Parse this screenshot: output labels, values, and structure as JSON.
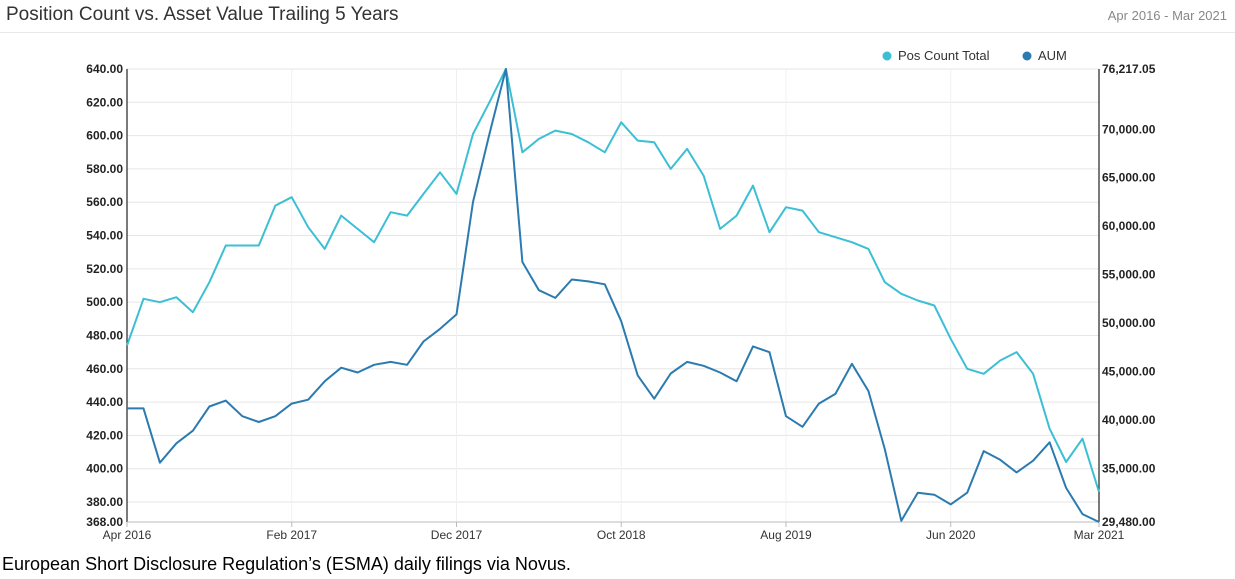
{
  "header": {
    "title": "Position Count vs. Asset Value Trailing 5 Years",
    "date_range": "Apr 2016 - Mar 2021"
  },
  "caption": "European Short Disclosure Regulation’s (ESMA) daily filings via Novus.",
  "colors": {
    "pos_count": "#3cbfd4",
    "aum": "#2b7bb0",
    "grid": "#e6e6e6",
    "axis": "#222222"
  },
  "chart_data": {
    "type": "line",
    "x_tick_labels": [
      "Apr 2016",
      "Feb 2017",
      "Dec 2017",
      "Oct 2018",
      "Aug 2019",
      "Jun 2020",
      "Mar 2021"
    ],
    "x_tick_index": [
      0,
      10,
      20,
      30,
      40,
      50,
      59
    ],
    "x": [
      "2016-04",
      "2016-05",
      "2016-06",
      "2016-07",
      "2016-08",
      "2016-09",
      "2016-10",
      "2016-11",
      "2016-12",
      "2017-01",
      "2017-02",
      "2017-03",
      "2017-04",
      "2017-05",
      "2017-06",
      "2017-07",
      "2017-08",
      "2017-09",
      "2017-10",
      "2017-11",
      "2017-12",
      "2018-01",
      "2018-02",
      "2018-03",
      "2018-04",
      "2018-05",
      "2018-06",
      "2018-07",
      "2018-08",
      "2018-09",
      "2018-10",
      "2018-11",
      "2018-12",
      "2019-01",
      "2019-02",
      "2019-03",
      "2019-04",
      "2019-05",
      "2019-06",
      "2019-07",
      "2019-08",
      "2019-09",
      "2019-10",
      "2019-11",
      "2019-12",
      "2020-01",
      "2020-02",
      "2020-03",
      "2020-04",
      "2020-05",
      "2020-06",
      "2020-07",
      "2020-08",
      "2020-09",
      "2020-10",
      "2020-11",
      "2020-12",
      "2021-01",
      "2021-02",
      "2021-03"
    ],
    "left_axis": {
      "min": 368.0,
      "max": 640.0,
      "ticks": [
        "368.00",
        "380.00",
        "400.00",
        "420.00",
        "440.00",
        "460.00",
        "480.00",
        "500.00",
        "520.00",
        "540.00",
        "560.00",
        "580.00",
        "600.00",
        "620.00",
        "640.00"
      ]
    },
    "right_axis": {
      "min": 29480.0,
      "max": 76217.05,
      "ticks": [
        "29,480.00",
        "35,000.00",
        "40,000.00",
        "45,000.00",
        "50,000.00",
        "55,000.00",
        "60,000.00",
        "65,000.00",
        "70,000.00",
        "76,217.05"
      ]
    },
    "legend": {
      "placement": "top-right"
    },
    "series": [
      {
        "name": "Pos Count Total",
        "axis": "left",
        "values": [
          474,
          502,
          500,
          503,
          494,
          512,
          534,
          534,
          534,
          558,
          563,
          545,
          532,
          552,
          544,
          536,
          554,
          552,
          565,
          578,
          565,
          601,
          620,
          640,
          590,
          598,
          603,
          601,
          596,
          590,
          608,
          597,
          596,
          580,
          592,
          576,
          544,
          552,
          570,
          542,
          557,
          555,
          542,
          539,
          536,
          532,
          512,
          505,
          501,
          498,
          478,
          460,
          457,
          465,
          470,
          457,
          424,
          404,
          418,
          386
        ]
      },
      {
        "name": "AUM",
        "axis": "right",
        "values": [
          41200,
          41200,
          35600,
          37600,
          38900,
          41400,
          42000,
          40400,
          39800,
          40400,
          41700,
          42100,
          44000,
          45400,
          44900,
          45700,
          46000,
          45700,
          48100,
          49400,
          50900,
          62500,
          69500,
          76217,
          56300,
          53400,
          52600,
          54500,
          54300,
          54000,
          50200,
          44600,
          42200,
          44800,
          46000,
          45600,
          44900,
          44000,
          47600,
          47000,
          40400,
          39300,
          41700,
          42700,
          45800,
          43000,
          37000,
          29600,
          32500,
          32300,
          31300,
          32500,
          36800,
          35900,
          34600,
          35800,
          37700,
          33000,
          30300,
          29480
        ]
      }
    ]
  }
}
